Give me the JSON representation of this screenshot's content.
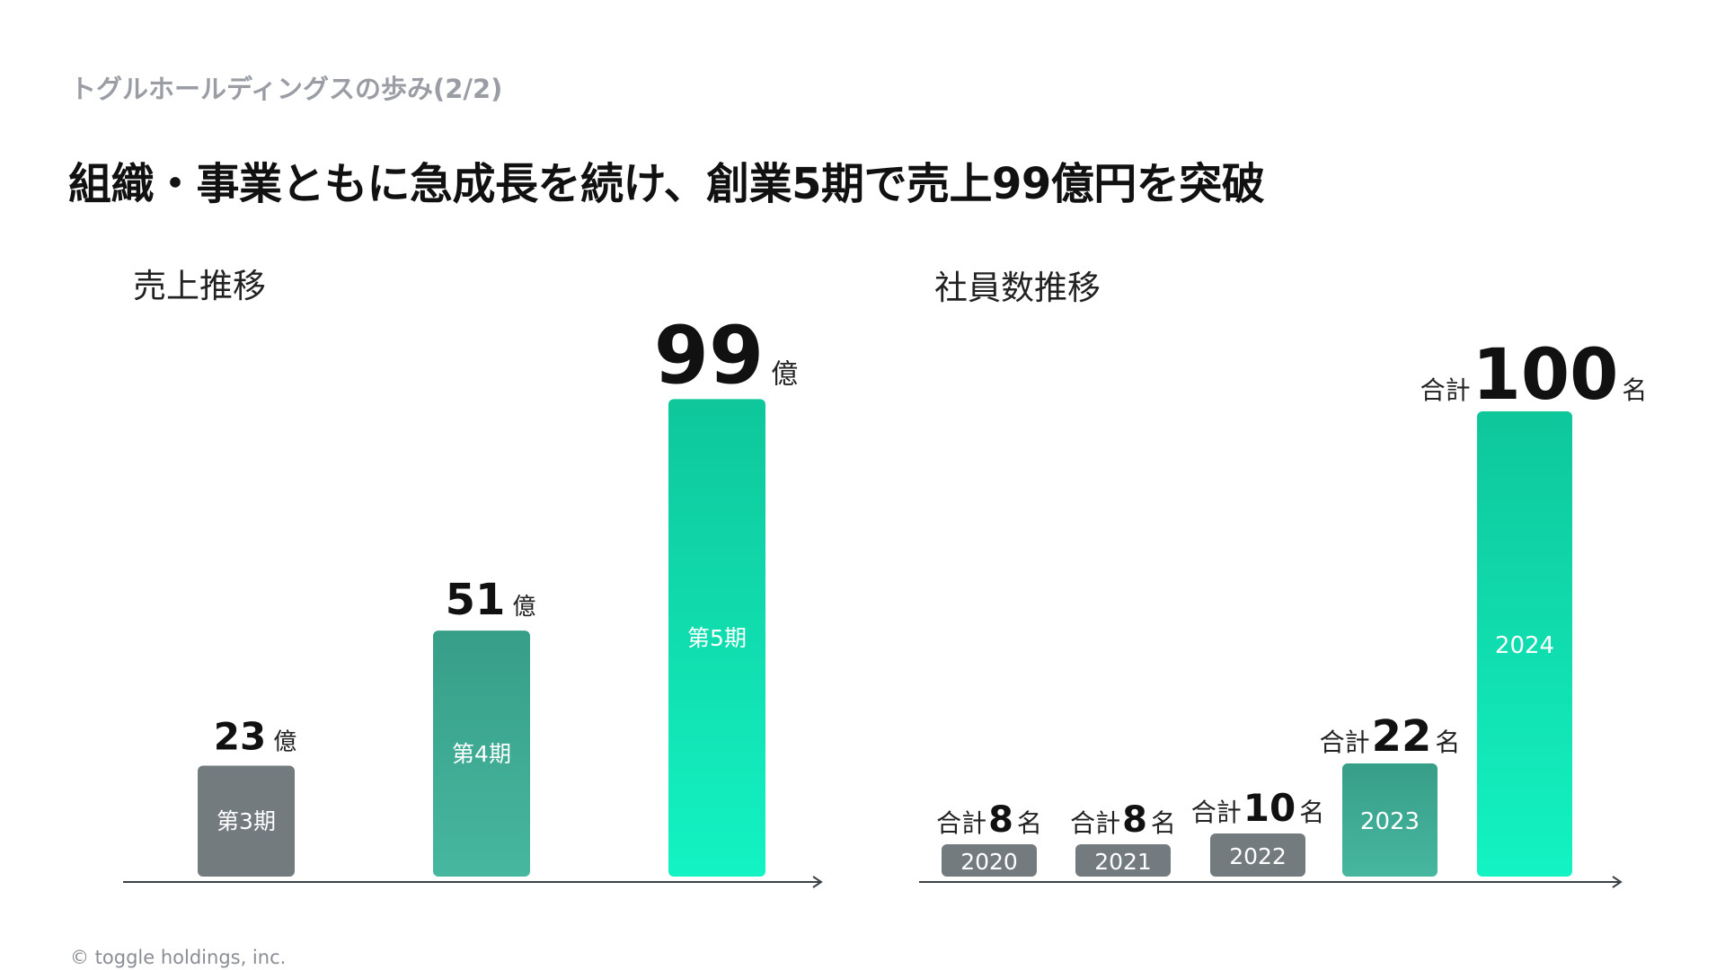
{
  "header": {
    "breadcrumb": "トグルホールディングスの歩み(2/2)",
    "title": "組織・事業ともに急成長を続け、創業5期で売上99億円を突破"
  },
  "footer": {
    "copyright": "© toggle holdings, inc."
  },
  "chart_data": [
    {
      "type": "bar",
      "title": "売上推移",
      "categories": [
        "第3期",
        "第4期",
        "第5期"
      ],
      "values": [
        23,
        51,
        99
      ],
      "unit": "億",
      "colors": [
        "#737b7f",
        "#3ea58f",
        "#13e6b6"
      ]
    },
    {
      "type": "bar",
      "title": "社員数推移",
      "categories": [
        "2020",
        "2021",
        "2022",
        "2023",
        "2024"
      ],
      "values": [
        8,
        8,
        10,
        22,
        100
      ],
      "prefix": "合計",
      "unit": "名",
      "colors": [
        "#737b7f",
        "#737b7f",
        "#737b7f",
        "#3ea58f",
        "#13e6b6"
      ]
    }
  ]
}
